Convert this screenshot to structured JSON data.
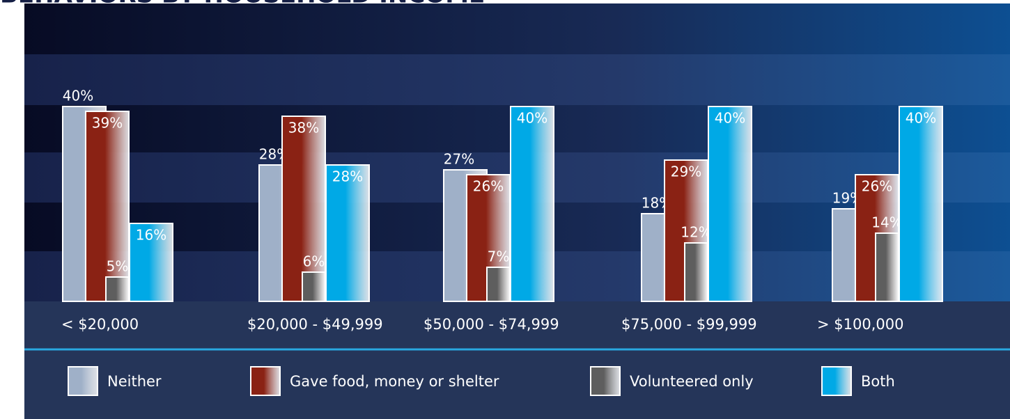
{
  "chart_data": {
    "type": "bar",
    "title": "BEHAVIORS BY HOUSEHOLD INCOME",
    "categories": [
      "< $20,000",
      "$20,000 - $49,999",
      "$50,000 - $74,999",
      "$75,000 - $99,999",
      "> $100,000"
    ],
    "series": [
      {
        "name": "Neither",
        "color": "#9fb0c8",
        "values": [
          40,
          28,
          27,
          18,
          19
        ],
        "value_labels": [
          "40%",
          "28%",
          "27%",
          "18%",
          "19%"
        ]
      },
      {
        "name": "Gave food, money or shelter",
        "color": "#8a2214",
        "values": [
          39,
          38,
          26,
          29,
          26
        ],
        "value_labels": [
          "39%",
          "38%",
          "26%",
          "29%",
          "26%"
        ]
      },
      {
        "name": "Volunteered only",
        "color": "#5e5e5e",
        "values": [
          5,
          6,
          7,
          12,
          14
        ],
        "value_labels": [
          "5%",
          "6%",
          "7%",
          "12%",
          "14%"
        ]
      },
      {
        "name": "Both",
        "color": "#00a9e6",
        "values": [
          16,
          28,
          40,
          40,
          40
        ],
        "value_labels": [
          "16%",
          "28%",
          "40%",
          "40%",
          "40%"
        ]
      }
    ]
  }
}
